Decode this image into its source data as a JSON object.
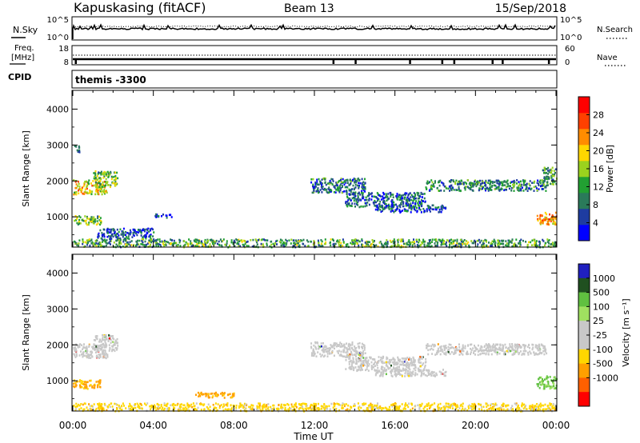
{
  "header": {
    "station": "Kapuskasing (fitACF)",
    "beam": "Beam 13",
    "date": "15/Sep/2018"
  },
  "noise_panel": {
    "left_label": "N.Sky",
    "right_label": "N.Search",
    "left_ticks": [
      "10^5",
      "10^0"
    ],
    "right_ticks": [
      "10^5",
      "10^0"
    ]
  },
  "freq_panel": {
    "left_label_line1": "Freq.",
    "left_label_line2": "[MHz]",
    "right_label": "Nave",
    "left_ticks": [
      "18",
      "8"
    ],
    "right_ticks": [
      "60",
      "0"
    ]
  },
  "cpid": {
    "label": "CPID",
    "text": "themis  -3300"
  },
  "colors": {
    "power_scale": [
      "#0000ff",
      "#1e3ca0",
      "#2a7a5a",
      "#22a032",
      "#9bd21e",
      "#ffd700",
      "#ff8c00",
      "#ff4000",
      "#ff0000"
    ],
    "velocity_scale": [
      "#2020c0",
      "#205020",
      "#60c040",
      "#a0e060",
      "#c8c8c8",
      "#c8c8c8",
      "#ffd700",
      "#ffa000",
      "#ff6000",
      "#ff0000"
    ],
    "ground_scatter": "#c8c8c8"
  },
  "chart_data": [
    {
      "type": "heatmap",
      "name": "power",
      "xlabel": "",
      "ylabel": "Slant Range [km]",
      "x_ticks": [
        "00:00",
        "04:00",
        "08:00",
        "12:00",
        "16:00",
        "20:00",
        "00:00"
      ],
      "x_tick_hours": [
        0,
        4,
        8,
        12,
        16,
        20,
        24
      ],
      "xlim_hours": [
        0,
        24
      ],
      "y_ticks": [
        1000,
        2000,
        3000,
        4000
      ],
      "ylim": [
        180,
        4500
      ],
      "colorbar": {
        "label": "Power [dB]",
        "ticks": [
          4,
          8,
          12,
          16,
          20,
          24,
          28
        ],
        "range": [
          0,
          32
        ]
      },
      "echo_regions": [
        {
          "t0": 0.0,
          "t1": 1.7,
          "r0": 1650,
          "r1": 2050,
          "value": 20
        },
        {
          "t0": 1.0,
          "t1": 2.2,
          "r0": 1850,
          "r1": 2300,
          "value": 14
        },
        {
          "t0": 0.0,
          "t1": 1.4,
          "r0": 800,
          "r1": 1050,
          "value": 14
        },
        {
          "t0": 0.0,
          "t1": 0.3,
          "r0": 2800,
          "r1": 3000,
          "value": 6
        },
        {
          "t0": 1.2,
          "t1": 4.0,
          "r0": 400,
          "r1": 700,
          "value": 6
        },
        {
          "t0": 4.0,
          "t1": 5.0,
          "r0": 1000,
          "r1": 1100,
          "value": 5
        },
        {
          "t0": 11.8,
          "t1": 14.5,
          "r0": 1700,
          "r1": 2100,
          "value": 8
        },
        {
          "t0": 13.5,
          "t1": 17.5,
          "r0": 1300,
          "r1": 1700,
          "value": 7
        },
        {
          "t0": 15.0,
          "t1": 18.5,
          "r0": 1150,
          "r1": 1350,
          "value": 6
        },
        {
          "t0": 17.5,
          "t1": 23.5,
          "r0": 1750,
          "r1": 2050,
          "value": 9
        },
        {
          "t0": 23.0,
          "t1": 24.0,
          "r0": 800,
          "r1": 1150,
          "value": 22
        },
        {
          "t0": 23.3,
          "t1": 24.0,
          "r0": 1900,
          "r1": 2400,
          "value": 10
        },
        {
          "t0": 0.0,
          "t1": 24.0,
          "r0": 180,
          "r1": 400,
          "value": 12
        }
      ]
    },
    {
      "type": "heatmap",
      "name": "velocity",
      "xlabel": "Time UT",
      "ylabel": "Slant Range [km]",
      "x_ticks": [
        "00:00",
        "04:00",
        "08:00",
        "12:00",
        "16:00",
        "20:00",
        "00:00"
      ],
      "x_tick_hours": [
        0,
        4,
        8,
        12,
        16,
        20,
        24
      ],
      "xlim_hours": [
        0,
        24
      ],
      "y_ticks": [
        1000,
        2000,
        3000,
        4000
      ],
      "ylim": [
        180,
        4500
      ],
      "colorbar": {
        "label": "Velocity [m s⁻¹]",
        "ticks": [
          "1000",
          "500",
          "100",
          "25",
          "-25",
          "-100",
          "-500",
          "-1000"
        ],
        "range": [
          -1000,
          1000
        ]
      },
      "echo_regions": [
        {
          "t0": 0.0,
          "t1": 1.7,
          "r0": 1650,
          "r1": 2050,
          "kind": "ground"
        },
        {
          "t0": 1.0,
          "t1": 2.2,
          "r0": 1850,
          "r1": 2300,
          "kind": "ground"
        },
        {
          "t0": 0.0,
          "t1": 1.4,
          "r0": 800,
          "r1": 1050,
          "value": -150
        },
        {
          "t0": 11.8,
          "t1": 14.5,
          "r0": 1700,
          "r1": 2100,
          "kind": "ground"
        },
        {
          "t0": 13.5,
          "t1": 17.5,
          "r0": 1300,
          "r1": 1700,
          "kind": "ground"
        },
        {
          "t0": 15.0,
          "t1": 18.5,
          "r0": 1150,
          "r1": 1350,
          "kind": "ground"
        },
        {
          "t0": 17.5,
          "t1": 23.5,
          "r0": 1750,
          "r1": 2050,
          "kind": "ground"
        },
        {
          "t0": 23.0,
          "t1": 24.0,
          "r0": 800,
          "r1": 1150,
          "value": 150
        },
        {
          "t0": 6.0,
          "t1": 8.0,
          "r0": 550,
          "r1": 700,
          "value": -200
        },
        {
          "t0": 0.0,
          "t1": 24.0,
          "r0": 180,
          "r1": 400,
          "value": -60
        }
      ]
    }
  ]
}
